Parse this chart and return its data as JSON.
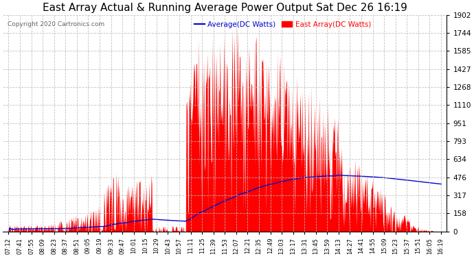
{
  "title": "East Array Actual & Running Average Power Output Sat Dec 26 16:19",
  "copyright": "Copyright 2020 Cartronics.com",
  "legend_avg": "Average(DC Watts)",
  "legend_east": "East Array(DC Watts)",
  "ylabel_right_ticks": [
    0.0,
    158.5,
    317.1,
    475.6,
    634.2,
    792.7,
    951.3,
    1109.8,
    1268.3,
    1426.9,
    1585.4,
    1744.0,
    1902.5
  ],
  "ymax": 1902.5,
  "ymin": 0.0,
  "background_color": "#ffffff",
  "plot_background": "#ffffff",
  "grid_color": "#bbbbbb",
  "bar_color": "#ff0000",
  "line_color": "#0000cc",
  "title_fontsize": 11,
  "copyright_fontsize": 7,
  "x_labels": [
    "07:12",
    "07:41",
    "07:55",
    "08:09",
    "08:23",
    "08:37",
    "08:51",
    "09:05",
    "09:19",
    "09:33",
    "09:47",
    "10:01",
    "10:15",
    "10:29",
    "10:43",
    "10:57",
    "11:11",
    "11:25",
    "11:39",
    "11:53",
    "12:07",
    "12:21",
    "12:35",
    "12:49",
    "13:03",
    "13:17",
    "13:31",
    "13:45",
    "13:59",
    "14:13",
    "14:27",
    "14:41",
    "14:55",
    "15:09",
    "15:23",
    "15:37",
    "15:51",
    "16:05",
    "16:19"
  ]
}
